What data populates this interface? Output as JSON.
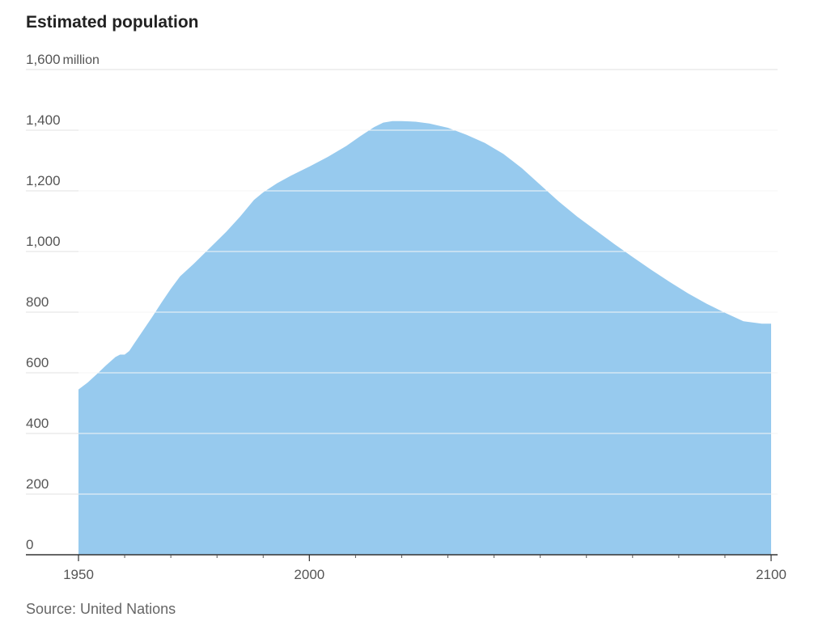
{
  "header": {
    "title": "Estimated population"
  },
  "footer": {
    "source": "Source: United Nations"
  },
  "chart_data": {
    "type": "area",
    "title": "Estimated population",
    "y_unit": "million",
    "xlim": [
      1950,
      2100
    ],
    "ylim": [
      0,
      1600
    ],
    "y_ticks": [
      0,
      200,
      400,
      600,
      800,
      1000,
      1200,
      1400,
      1600
    ],
    "y_tick_labels": [
      "0",
      "200",
      "400",
      "600",
      "800",
      "1,000",
      "1,200",
      "1,400",
      "1,600"
    ],
    "x_tick_labels": [
      {
        "value": 1950,
        "label": "1950"
      },
      {
        "value": 2000,
        "label": "2000"
      },
      {
        "value": 2100,
        "label": "2100"
      }
    ],
    "x_minor_ticks": [
      1950,
      1960,
      1970,
      1980,
      1990,
      2000,
      2010,
      2020,
      2030,
      2040,
      2050,
      2060,
      2070,
      2080,
      2090,
      2100
    ],
    "grid": true,
    "color": "#97caee",
    "x": [
      1950,
      1952,
      1954,
      1956,
      1958,
      1959,
      1960,
      1961,
      1962,
      1964,
      1966,
      1968,
      1970,
      1972,
      1975,
      1978,
      1980,
      1982,
      1985,
      1988,
      1990,
      1993,
      1996,
      2000,
      2004,
      2008,
      2011,
      2014,
      2016,
      2018,
      2020,
      2023,
      2026,
      2030,
      2034,
      2038,
      2042,
      2046,
      2050,
      2054,
      2058,
      2062,
      2066,
      2070,
      2074,
      2078,
      2082,
      2086,
      2090,
      2094,
      2098,
      2100
    ],
    "series": [
      {
        "values": [
          545,
          568,
          596,
          625,
          652,
          660,
          660,
          672,
          695,
          740,
          785,
          832,
          877,
          918,
          960,
          1005,
          1035,
          1065,
          1115,
          1170,
          1195,
          1225,
          1250,
          1280,
          1312,
          1348,
          1380,
          1410,
          1425,
          1430,
          1430,
          1428,
          1422,
          1408,
          1385,
          1358,
          1322,
          1275,
          1220,
          1165,
          1115,
          1070,
          1025,
          982,
          940,
          900,
          862,
          828,
          798,
          770,
          762,
          762
        ]
      }
    ]
  }
}
